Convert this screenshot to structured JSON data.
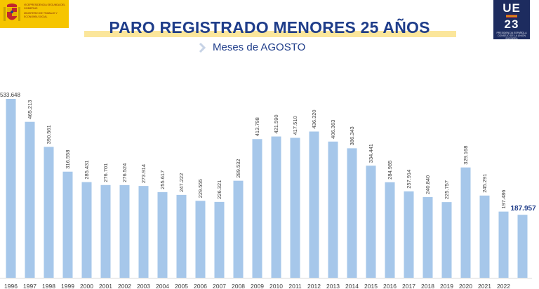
{
  "header": {
    "logo_left": {
      "line1": "VICEPRESIDENCIA SEGUNDA DEL GOBIERNO",
      "line2": "MINISTERIO DE TRABAJO Y ECONOMÍA SOCIAL"
    },
    "logo_right": {
      "top": "UE",
      "bottom": "23",
      "caption": "PRESIDENCIA ESPAÑOLA CONSEJO DE LA UNIÓN EUROPEA"
    }
  },
  "colors": {
    "bar": "#a6c7ea",
    "title": "#1f3d8a",
    "highlight": "#fbe69b"
  },
  "chart_data": {
    "type": "bar",
    "title": "PARO REGISTRADO MENORES 25 AÑOS",
    "subtitle": "Meses de AGOSTO",
    "categories": [
      "1996",
      "1997",
      "1998",
      "1999",
      "2000",
      "2001",
      "2002",
      "2003",
      "2004",
      "2005",
      "2006",
      "2007",
      "2008",
      "2009",
      "2010",
      "2011",
      "2012",
      "2013",
      "2014",
      "2015",
      "2016",
      "2017",
      "2018",
      "2019",
      "2020",
      "2021",
      "2022",
      ""
    ],
    "values": [
      533648,
      465213,
      390561,
      316558,
      285431,
      276701,
      276524,
      273914,
      255617,
      247222,
      229555,
      226321,
      289532,
      413798,
      421590,
      417510,
      436320,
      406363,
      386343,
      334441,
      284985,
      257914,
      240840,
      225757,
      329168,
      245291,
      197486,
      187957
    ],
    "labels": [
      "533.648",
      "465.213",
      "390.561",
      "316.558",
      "285.431",
      "276.701",
      "276.524",
      "273.914",
      "255.617",
      "247.222",
      "229.555",
      "226.321",
      "289.532",
      "413.798",
      "421.590",
      "417.510",
      "436.320",
      "406.363",
      "386.343",
      "334.441",
      "284.985",
      "257.914",
      "240.840",
      "225.757",
      "329.168",
      "245.291",
      "197.486",
      "187.957"
    ],
    "ylim": [
      0,
      533648
    ],
    "grid": false,
    "legend": "none",
    "xlabel": "",
    "ylabel": ""
  }
}
